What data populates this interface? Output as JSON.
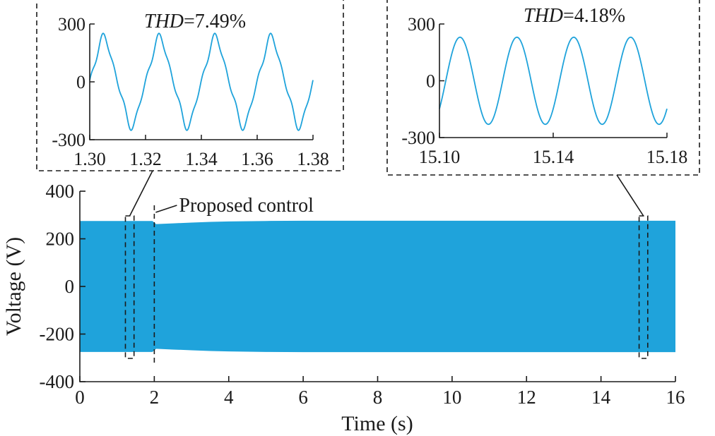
{
  "chart_data": {
    "main": {
      "type": "area",
      "xlabel": "Time (s)",
      "ylabel": "Voltage (V)",
      "xlim": [
        0,
        16
      ],
      "ylim": [
        -400,
        400
      ],
      "x_ticks": [
        0,
        2,
        4,
        6,
        8,
        10,
        12,
        14,
        16
      ],
      "y_ticks": [
        400,
        200,
        0,
        -200,
        -400
      ],
      "color": "#1fa3db",
      "envelope": {
        "x": [
          0,
          1.95,
          2.0,
          2.05,
          2.5,
          3.0,
          3.5,
          4.0,
          5.0,
          6.0,
          8.0,
          16.0
        ],
        "upper": [
          275,
          275,
          268,
          262,
          265,
          268,
          271,
          273,
          275,
          276,
          276,
          276
        ],
        "lower": [
          -275,
          -275,
          -268,
          -262,
          -265,
          -268,
          -271,
          -273,
          -275,
          -276,
          -276,
          -276
        ]
      },
      "annotation": {
        "text": "Proposed control",
        "x": 2.0
      },
      "zoom_windows": [
        {
          "x": [
            1.3,
            1.38
          ],
          "y": [
            -300,
            300
          ]
        },
        {
          "x": [
            15.1,
            15.18
          ],
          "y": [
            -300,
            300
          ]
        }
      ]
    },
    "insets": [
      {
        "type": "line",
        "thd_label": "THD",
        "thd_value": "=7.49%",
        "xlim": [
          1.3,
          1.38
        ],
        "ylim": [
          -300,
          300
        ],
        "x_ticks": [
          "1.30",
          "1.32",
          "1.34",
          "1.36",
          "1.38"
        ],
        "y_ticks": [
          "300",
          "0",
          "-300"
        ],
        "amplitude": 230,
        "frequency_hz": 50,
        "phase_deg": 0,
        "harmonic_distortion": true
      },
      {
        "type": "line",
        "thd_label": "THD",
        "thd_value": "=4.18%",
        "xlim": [
          15.1,
          15.18
        ],
        "ylim": [
          -300,
          300
        ],
        "x_ticks": [
          "15.10",
          "15.14",
          "15.18"
        ],
        "y_ticks": [
          "300",
          "0",
          "-300"
        ],
        "amplitude": 230,
        "frequency_hz": 50,
        "phase_deg": -40,
        "harmonic_distortion": false
      }
    ]
  }
}
